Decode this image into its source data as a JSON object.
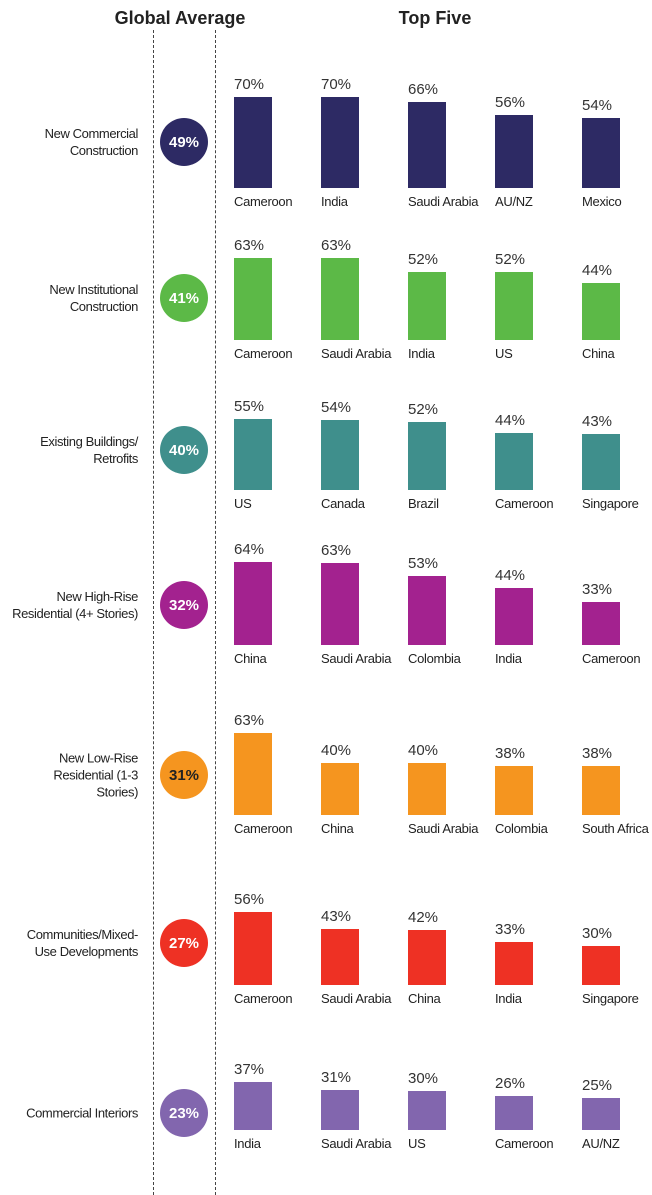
{
  "headers": {
    "global_average": "Global Average",
    "top_five": "Top Five"
  },
  "chart_data": [
    {
      "type": "bar",
      "title": "New Commercial Construction",
      "average": 49,
      "average_label": "49%",
      "color": "#2d2a64",
      "average_text_color": "#ffffff",
      "categories": [
        "Cameroon",
        "India",
        "Saudi Arabia",
        "AU/NZ",
        "Mexico"
      ],
      "values": [
        70,
        70,
        66,
        56,
        54
      ],
      "value_labels": [
        "70%",
        "70%",
        "66%",
        "56%",
        "54%"
      ]
    },
    {
      "type": "bar",
      "title": "New Institutional Construction",
      "average": 41,
      "average_label": "41%",
      "color": "#5cb947",
      "average_text_color": "#ffffff",
      "categories": [
        "Cameroon",
        "Saudi Arabia",
        "India",
        "US",
        "China"
      ],
      "values": [
        63,
        63,
        52,
        52,
        44
      ],
      "value_labels": [
        "63%",
        "63%",
        "52%",
        "52%",
        "44%"
      ]
    },
    {
      "type": "bar",
      "title": "Existing Buildings/ Retrofits",
      "average": 40,
      "average_label": "40%",
      "color": "#3f8f8c",
      "average_text_color": "#ffffff",
      "categories": [
        "US",
        "Canada",
        "Brazil",
        "Cameroon",
        "Singapore"
      ],
      "values": [
        55,
        54,
        52,
        44,
        43
      ],
      "value_labels": [
        "55%",
        "54%",
        "52%",
        "44%",
        "43%"
      ]
    },
    {
      "type": "bar",
      "title": "New High-Rise Residential (4+ Stories)",
      "average": 32,
      "average_label": "32%",
      "color": "#a3228f",
      "average_text_color": "#ffffff",
      "categories": [
        "China",
        "Saudi Arabia",
        "Colombia",
        "India",
        "Cameroon"
      ],
      "values": [
        64,
        63,
        53,
        44,
        33
      ],
      "value_labels": [
        "64%",
        "63%",
        "53%",
        "44%",
        "33%"
      ]
    },
    {
      "type": "bar",
      "title": "New Low-Rise Residential (1-3 Stories)",
      "average": 31,
      "average_label": "31%",
      "color": "#f5951f",
      "average_text_color": "#222222",
      "categories": [
        "Cameroon",
        "China",
        "Saudi Arabia",
        "Colombia",
        "South Africa"
      ],
      "values": [
        63,
        40,
        40,
        38,
        38
      ],
      "value_labels": [
        "63%",
        "40%",
        "40%",
        "38%",
        "38%"
      ]
    },
    {
      "type": "bar",
      "title": "Communities/Mixed-Use Developments",
      "average": 27,
      "average_label": "27%",
      "color": "#ee3124",
      "average_text_color": "#ffffff",
      "categories": [
        "Cameroon",
        "Saudi Arabia",
        "China",
        "India",
        "Singapore"
      ],
      "values": [
        56,
        43,
        42,
        33,
        30
      ],
      "value_labels": [
        "56%",
        "43%",
        "42%",
        "33%",
        "30%"
      ]
    },
    {
      "type": "bar",
      "title": "Commercial Interiors",
      "average": 23,
      "average_label": "23%",
      "color": "#8266ae",
      "average_text_color": "#ffffff",
      "categories": [
        "India",
        "Saudi Arabia",
        "US",
        "Cameroon",
        "AU/NZ"
      ],
      "values": [
        37,
        31,
        30,
        26,
        25
      ],
      "value_labels": [
        "37%",
        "31%",
        "30%",
        "26%",
        "25%"
      ]
    }
  ]
}
